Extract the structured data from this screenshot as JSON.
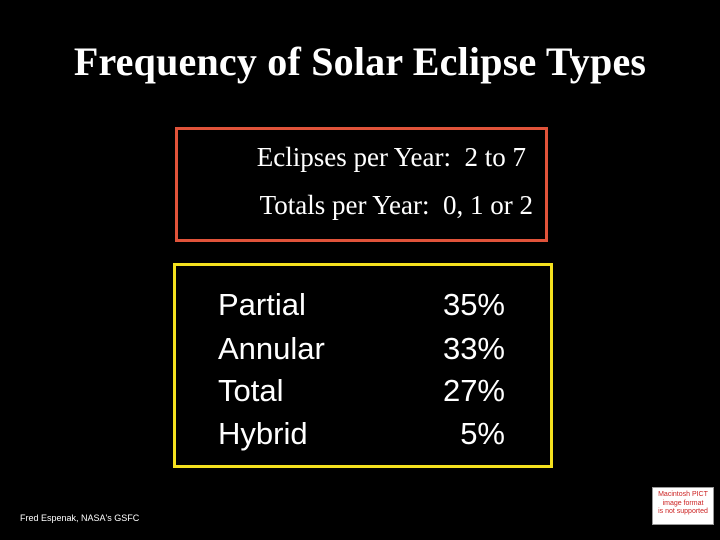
{
  "slide": {
    "title": "Frequency of Solar Eclipse Types",
    "summary": {
      "line1": "Eclipses per Year:  2 to 7",
      "line2": "Totals per Year:  0, 1 or 2"
    },
    "types": [
      {
        "name": "Partial",
        "percent": "35%"
      },
      {
        "name": "Annular",
        "percent": "33%"
      },
      {
        "name": "Total",
        "percent": "27%"
      },
      {
        "name": "Hybrid",
        "percent": "5%"
      }
    ],
    "credit": "Fred Espenak, NASA's GSFC",
    "pict_notice": {
      "line1": "Macintosh PICT",
      "line2": "image format",
      "line3": "is not supported"
    }
  },
  "colors": {
    "background": "#000000",
    "red_box": "#e0533a",
    "yellow_box": "#f5e11e"
  }
}
